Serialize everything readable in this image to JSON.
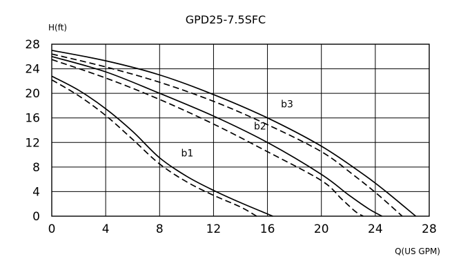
{
  "chart_data": {
    "type": "line",
    "title": "GPD25-7.5SFC",
    "ylabel": "H(ft)",
    "xlabel": "Q(US GPM)",
    "xlim": [
      0,
      28
    ],
    "ylim": [
      0,
      28
    ],
    "xticks": [
      "0",
      "4",
      "8",
      "12",
      "16",
      "20",
      "24",
      "28"
    ],
    "yticks": [
      "0",
      "4",
      "8",
      "12",
      "16",
      "20",
      "24",
      "28"
    ],
    "grid": true,
    "series": [
      {
        "name": "b1",
        "style": "solid",
        "points": [
          [
            0,
            22.8
          ],
          [
            2,
            20.5
          ],
          [
            4,
            17.5
          ],
          [
            6,
            13.8
          ],
          [
            8,
            9.5
          ],
          [
            10,
            6.5
          ],
          [
            12,
            4.2
          ],
          [
            14,
            2.2
          ],
          [
            16.4,
            0
          ]
        ]
      },
      {
        "name": "b1",
        "style": "dashed",
        "points": [
          [
            0,
            22.2
          ],
          [
            2,
            19.6
          ],
          [
            4,
            16.4
          ],
          [
            6,
            12.5
          ],
          [
            8,
            8.5
          ],
          [
            10,
            5.6
          ],
          [
            12,
            3.4
          ],
          [
            14,
            1.5
          ],
          [
            15.2,
            0
          ]
        ]
      },
      {
        "name": "b2",
        "style": "solid",
        "points": [
          [
            0,
            26.0
          ],
          [
            4,
            23.5
          ],
          [
            8,
            20.0
          ],
          [
            12,
            16.3
          ],
          [
            16,
            12.0
          ],
          [
            20,
            6.8
          ],
          [
            22,
            3.5
          ],
          [
            23.5,
            1.2
          ],
          [
            24.5,
            0
          ]
        ]
      },
      {
        "name": "b2",
        "style": "dashed",
        "points": [
          [
            0,
            25.5
          ],
          [
            4,
            22.5
          ],
          [
            8,
            19.0
          ],
          [
            12,
            15.0
          ],
          [
            16,
            10.5
          ],
          [
            20,
            5.8
          ],
          [
            21.5,
            2.8
          ],
          [
            22.5,
            0.8
          ],
          [
            23.1,
            0
          ]
        ]
      },
      {
        "name": "b3",
        "style": "solid",
        "points": [
          [
            0,
            27.0
          ],
          [
            4,
            25.3
          ],
          [
            8,
            23.0
          ],
          [
            12,
            19.8
          ],
          [
            16,
            16.0
          ],
          [
            20,
            11.4
          ],
          [
            23,
            7.0
          ],
          [
            24.8,
            4.0
          ],
          [
            27.0,
            0
          ]
        ]
      },
      {
        "name": "b3",
        "style": "dashed",
        "points": [
          [
            0,
            26.4
          ],
          [
            4,
            24.3
          ],
          [
            8,
            21.8
          ],
          [
            12,
            18.7
          ],
          [
            16,
            14.9
          ],
          [
            20,
            10.5
          ],
          [
            22.5,
            6.5
          ],
          [
            24.2,
            3.5
          ],
          [
            26.0,
            0
          ]
        ]
      }
    ],
    "annotations": [
      {
        "text": "b1",
        "x": 9.6,
        "y": 9.7
      },
      {
        "text": "b2",
        "x": 15.0,
        "y": 14.1
      },
      {
        "text": "b3",
        "x": 17.0,
        "y": 17.7
      }
    ]
  }
}
